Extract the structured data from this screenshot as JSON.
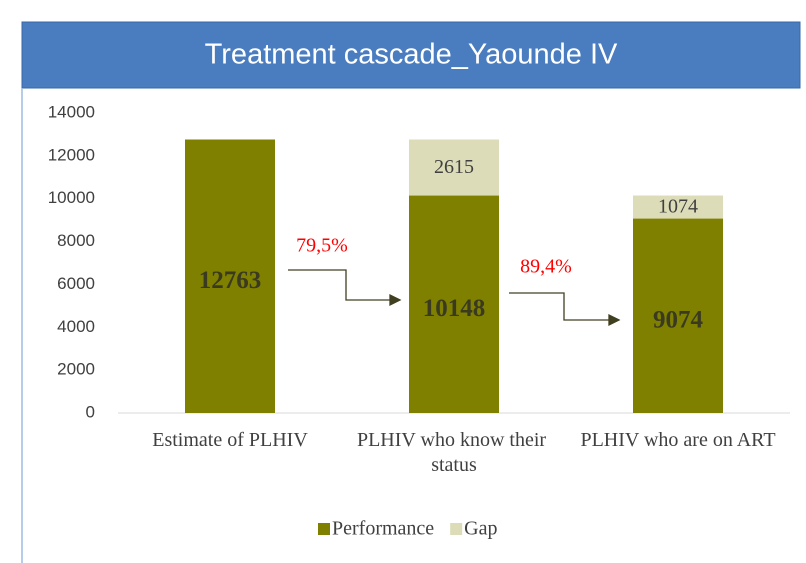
{
  "chart_data": {
    "type": "stacked_bar",
    "title": "Treatment cascade_Yaounde IV",
    "categories": [
      "Estimate of PLHIV",
      "PLHIV who know their status",
      "PLHIV who are on ART"
    ],
    "series": [
      {
        "name": "Performance",
        "color": "#7f7f00",
        "values": [
          12763,
          10148,
          9074
        ]
      },
      {
        "name": "Gap",
        "color": "#dcdcb8",
        "values": [
          null,
          2615,
          1074
        ]
      }
    ],
    "annotations": [
      "79,5%",
      "89,4%"
    ],
    "ylim": [
      0,
      14000
    ],
    "yticks": [
      0,
      2000,
      4000,
      6000,
      8000,
      10000,
      12000,
      14000
    ],
    "grid": false,
    "legend": "bottom"
  }
}
